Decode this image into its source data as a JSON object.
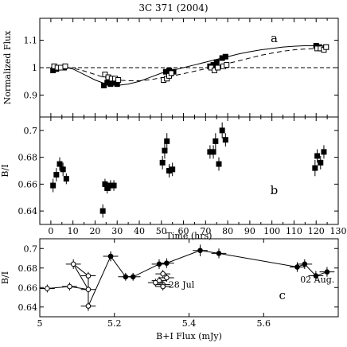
{
  "title": "3C 371 (2004)",
  "chart_data": [
    {
      "type": "scatter",
      "panel_label": "a",
      "ylabel": "Normalized Flux",
      "xlim": [
        -5,
        130
      ],
      "ylim": [
        0.82,
        1.18
      ],
      "x_ticks": [
        0,
        10,
        20,
        30,
        40,
        50,
        60,
        70,
        80,
        90,
        100,
        110,
        120,
        130
      ],
      "y_ticks": [
        0.9,
        1,
        1.1
      ],
      "y_tick_labels": [
        "0.9",
        "1",
        "1.1"
      ],
      "reference_line_y": 1.0,
      "series": [
        {
          "marker": "filled-square",
          "x": [
            1,
            2.5,
            4,
            6,
            24,
            25.5,
            27,
            28,
            29,
            30,
            52,
            53.5,
            54.5,
            55.5,
            72,
            73.5,
            75,
            77.5,
            79,
            120,
            121.5,
            123,
            124.5
          ],
          "y": [
            0.99,
            0.995,
            1.0,
            1.0,
            0.935,
            0.945,
            0.94,
            0.95,
            0.945,
            0.94,
            0.985,
            0.99,
            0.98,
            0.985,
            1.005,
            1.01,
            1.02,
            1.035,
            1.04,
            1.08,
            1.075,
            1.07,
            1.075
          ]
        },
        {
          "marker": "open-square",
          "x": [
            1.5,
            3,
            4.5,
            6.5,
            24.5,
            26,
            27.5,
            29,
            30.5,
            51,
            52.5,
            53.5,
            54.5,
            72.5,
            74,
            75.5,
            78,
            79.5,
            120.5,
            122,
            123.5,
            124.5
          ],
          "y": [
            1.005,
            1.0,
            1.0,
            1.005,
            0.975,
            0.965,
            0.96,
            0.96,
            0.955,
            0.955,
            0.96,
            0.97,
            0.98,
            1.0,
            0.99,
            1.0,
            1.005,
            1.01,
            1.07,
            1.07,
            1.065,
            1.075
          ]
        }
      ],
      "curves": [
        {
          "style": "solid",
          "x": [
            0,
            5,
            10,
            15,
            20,
            25,
            30,
            35,
            40,
            45,
            50,
            55,
            60,
            65,
            70,
            75,
            80,
            85,
            90,
            95,
            100,
            105,
            110,
            115,
            120,
            125
          ],
          "y": [
            1.0,
            1.005,
            0.995,
            0.975,
            0.955,
            0.94,
            0.935,
            0.94,
            0.95,
            0.965,
            0.98,
            0.99,
            1.0,
            1.01,
            1.02,
            1.03,
            1.04,
            1.05,
            1.058,
            1.065,
            1.07,
            1.075,
            1.078,
            1.08,
            1.08,
            1.078
          ]
        },
        {
          "style": "dashed",
          "x": [
            0,
            5,
            10,
            15,
            20,
            25,
            30,
            35,
            40,
            45,
            50,
            55,
            60,
            65,
            70,
            75,
            80,
            85,
            90,
            95,
            100,
            105,
            110,
            115,
            120,
            125
          ],
          "y": [
            1.0,
            1.003,
            0.998,
            0.988,
            0.975,
            0.962,
            0.955,
            0.952,
            0.952,
            0.956,
            0.963,
            0.97,
            0.978,
            0.987,
            0.996,
            1.005,
            1.015,
            1.025,
            1.035,
            1.045,
            1.053,
            1.06,
            1.065,
            1.068,
            1.07,
            1.07
          ]
        }
      ]
    },
    {
      "type": "scatter",
      "panel_label": "b",
      "ylabel": "B/I",
      "xlabel": "Time (hrs)",
      "xlim": [
        -5,
        130
      ],
      "ylim": [
        0.63,
        0.71
      ],
      "x_ticks": [
        0,
        10,
        20,
        30,
        40,
        50,
        60,
        70,
        80,
        90,
        100,
        110,
        120,
        130
      ],
      "x_tick_labels": [
        "0",
        "10",
        "20",
        "30",
        "40",
        "50",
        "60",
        "70",
        "80",
        "90",
        "100",
        "110",
        "120",
        "130"
      ],
      "y_ticks": [
        0.64,
        0.66,
        0.68,
        0.7
      ],
      "y_tick_labels": [
        "0.64",
        "0.66",
        "0.68",
        "0.7"
      ],
      "series": [
        {
          "marker": "filled-square",
          "x": [
            1,
            2.5,
            4,
            5.5,
            7,
            23.5,
            24.5,
            25.5,
            27,
            28.5,
            50.5,
            51.5,
            52.5,
            53.5,
            55,
            72,
            73.5,
            74.5,
            76,
            77.5,
            79,
            119.5,
            120.5,
            122,
            123.5
          ],
          "y": [
            0.659,
            0.667,
            0.675,
            0.671,
            0.664,
            0.64,
            0.66,
            0.657,
            0.659,
            0.659,
            0.676,
            0.685,
            0.692,
            0.67,
            0.671,
            0.684,
            0.684,
            0.692,
            0.675,
            0.7,
            0.693,
            0.672,
            0.681,
            0.676,
            0.684
          ],
          "err": [
            0.005,
            0.005,
            0.005,
            0.005,
            0.004,
            0.005,
            0.004,
            0.004,
            0.004,
            0.004,
            0.005,
            0.006,
            0.006,
            0.005,
            0.005,
            0.005,
            0.005,
            0.006,
            0.005,
            0.006,
            0.005,
            0.006,
            0.005,
            0.005,
            0.005
          ]
        }
      ]
    },
    {
      "type": "scatter",
      "panel_label": "c",
      "ylabel": "B/I",
      "xlabel": "B+I Flux (mJy)",
      "xlim": [
        5.0,
        5.8
      ],
      "ylim": [
        0.63,
        0.71
      ],
      "x_ticks": [
        5,
        5.2,
        5.4,
        5.6
      ],
      "x_tick_labels": [
        "5",
        "5.2",
        "5.4",
        "5.6"
      ],
      "y_ticks": [
        0.64,
        0.66,
        0.68,
        0.7
      ],
      "y_tick_labels": [
        "0.64",
        "0.66",
        "0.68",
        "0.7"
      ],
      "annotations": [
        {
          "text": "28 Jul",
          "x": 5.345,
          "y": 0.66
        },
        {
          "text": "02 Aug.",
          "x": 5.698,
          "y": 0.665
        }
      ],
      "series": [
        {
          "marker": "open-circle",
          "connected": true,
          "x": [
            5.02,
            5.08,
            5.13,
            5.09,
            5.13,
            5.13,
            5.19
          ],
          "y": [
            0.659,
            0.661,
            0.658,
            0.684,
            0.672,
            0.641,
            0.692
          ],
          "xerr": [
            0.02,
            0.02,
            0.02,
            0.02,
            0.02,
            0.02,
            0.02
          ],
          "yerr": [
            0.004,
            0.004,
            0.004,
            0.005,
            0.004,
            0.005,
            0.005
          ]
        },
        {
          "marker": "filled-circle",
          "connected": true,
          "x": [
            5.19,
            5.23,
            5.25,
            5.32,
            5.34,
            5.43,
            5.48,
            5.69,
            5.71,
            5.74,
            5.77
          ],
          "y": [
            0.692,
            0.671,
            0.671,
            0.684,
            0.685,
            0.698,
            0.695,
            0.681,
            0.684,
            0.672,
            0.676
          ],
          "xerr": [
            0.02,
            0.02,
            0.02,
            0.02,
            0.02,
            0.02,
            0.02,
            0.02,
            0.02,
            0.02,
            0.02
          ],
          "yerr": [
            0.005,
            0.004,
            0.004,
            0.005,
            0.005,
            0.006,
            0.005,
            0.005,
            0.005,
            0.005,
            0.005
          ]
        },
        {
          "marker": "open-circle",
          "connected": false,
          "x": [
            5.32,
            5.33,
            5.34,
            5.33,
            5.31,
            5.33
          ],
          "y": [
            0.667,
            0.663,
            0.67,
            0.674,
            0.665,
            0.661
          ],
          "xerr": [
            0.02,
            0.02,
            0.02,
            0.02,
            0.02,
            0.02
          ],
          "yerr": [
            0.004,
            0.004,
            0.004,
            0.004,
            0.004,
            0.004
          ]
        }
      ]
    }
  ]
}
